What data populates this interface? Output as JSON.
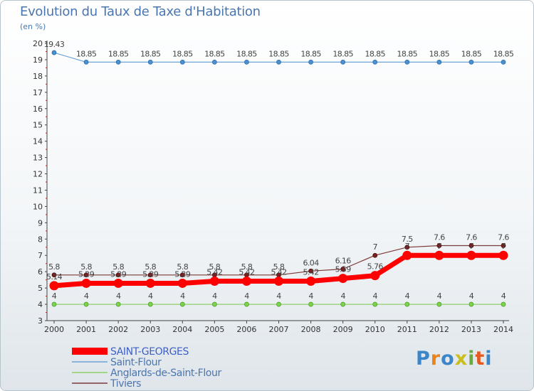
{
  "chart_data": {
    "type": "line",
    "title": "Evolution du Taux de Taxe d'Habitation",
    "unit": "(en %)",
    "x": [
      "2000",
      "2001",
      "2002",
      "2003",
      "2004",
      "2005",
      "2006",
      "2007",
      "2008",
      "2009",
      "2010",
      "2011",
      "2012",
      "2013",
      "2014"
    ],
    "yticks": [
      "3",
      "4",
      "5",
      "6",
      "7",
      "8",
      "9",
      "10",
      "11",
      "12",
      "13",
      "14",
      "15",
      "16",
      "17",
      "18",
      "19",
      "20"
    ],
    "ylim": [
      3,
      20
    ],
    "grid": false,
    "legend_position": "bottom-left",
    "series": [
      {
        "name": "SAINT-GEORGES",
        "color": "#ff0000",
        "values": [
          5.14,
          5.29,
          5.29,
          5.29,
          5.29,
          5.42,
          5.42,
          5.42,
          5.42,
          5.59,
          5.76,
          7,
          7,
          7,
          7
        ],
        "labels": [
          "5.14",
          "5.29",
          "5.29",
          "5.29",
          "5.29",
          "5.42",
          "5.42",
          "5.42",
          "5.42",
          "5.59",
          "5.76",
          "7",
          "7",
          "7",
          "7"
        ]
      },
      {
        "name": "Saint-Flour",
        "color": "#6ea3d6",
        "values": [
          19.43,
          18.85,
          18.85,
          18.85,
          18.85,
          18.85,
          18.85,
          18.85,
          18.85,
          18.85,
          18.85,
          18.85,
          18.85,
          18.85,
          18.85
        ],
        "labels": [
          "19.43",
          "18.85",
          "18.85",
          "18.85",
          "18.85",
          "18.85",
          "18.85",
          "18.85",
          "18.85",
          "18.85",
          "18.85",
          "18.85",
          "18.85",
          "18.85",
          "18.85"
        ]
      },
      {
        "name": "Anglards-de-Saint-Flour",
        "color": "#8fd16a",
        "values": [
          4,
          4,
          4,
          4,
          4,
          4,
          4,
          4,
          4,
          4,
          4,
          4,
          4,
          4,
          4
        ],
        "labels": [
          "4",
          "4",
          "4",
          "4",
          "4",
          "4",
          "4",
          "4",
          "4",
          "4",
          "4",
          "4",
          "4",
          "4",
          "4"
        ]
      },
      {
        "name": "Tiviers",
        "color": "#7b3a3a",
        "values": [
          5.8,
          5.8,
          5.8,
          5.8,
          5.8,
          5.8,
          5.8,
          5.8,
          6.04,
          6.16,
          7,
          7.5,
          7.6,
          7.6,
          7.6
        ],
        "labels": [
          "5.8",
          "5.8",
          "5.8",
          "5.8",
          "5.8",
          "5.8",
          "5.8",
          "5.8",
          "6.04",
          "6.16",
          "7",
          "7.5",
          "7.6",
          "7.6",
          "7.6"
        ]
      }
    ]
  },
  "branding": {
    "logo_text": "Proxiti",
    "logo_letter_colors": [
      "#3a86c8",
      "#e8841a",
      "#3a86c8",
      "#c8bf1e",
      "#6aab3c",
      "#e35a22",
      "#3a86c8"
    ]
  }
}
